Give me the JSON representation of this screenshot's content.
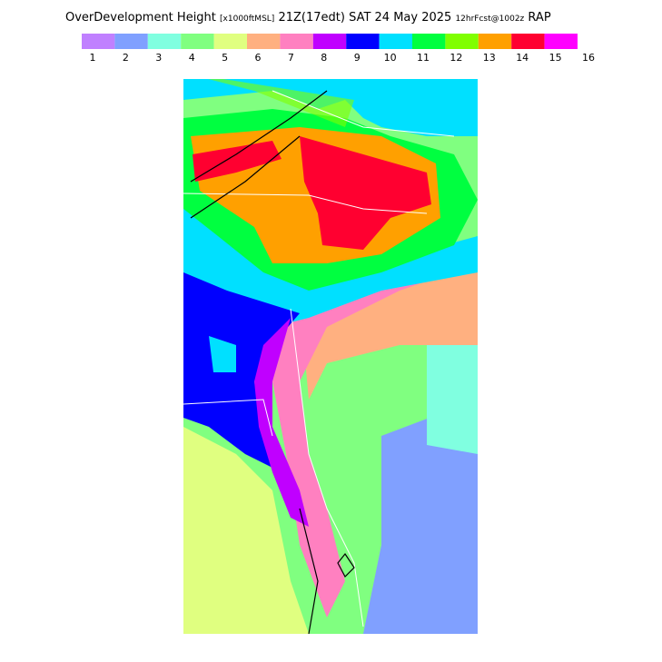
{
  "header": {
    "title": [
      "OverDevelopment Height",
      "[x1000ftMSL]",
      "21Z(17edt) SAT 24 May 2025",
      "12hrFcst@1002z",
      "RAP"
    ]
  },
  "legend": {
    "labels": [
      1,
      2,
      3,
      4,
      5,
      6,
      7,
      8,
      9,
      10,
      11,
      12,
      13,
      14,
      15,
      16
    ],
    "colors": [
      "#c080ff",
      "#80a0ff",
      "#80ffe0",
      "#80ff80",
      "#e0ff80",
      "#ffb080",
      "#ff80c0",
      "#c000ff",
      "#0000ff",
      "#00e0ff",
      "#00ff40",
      "#80ff00",
      "#ffa000",
      "#ff0030",
      "#ff00ff"
    ]
  }
}
